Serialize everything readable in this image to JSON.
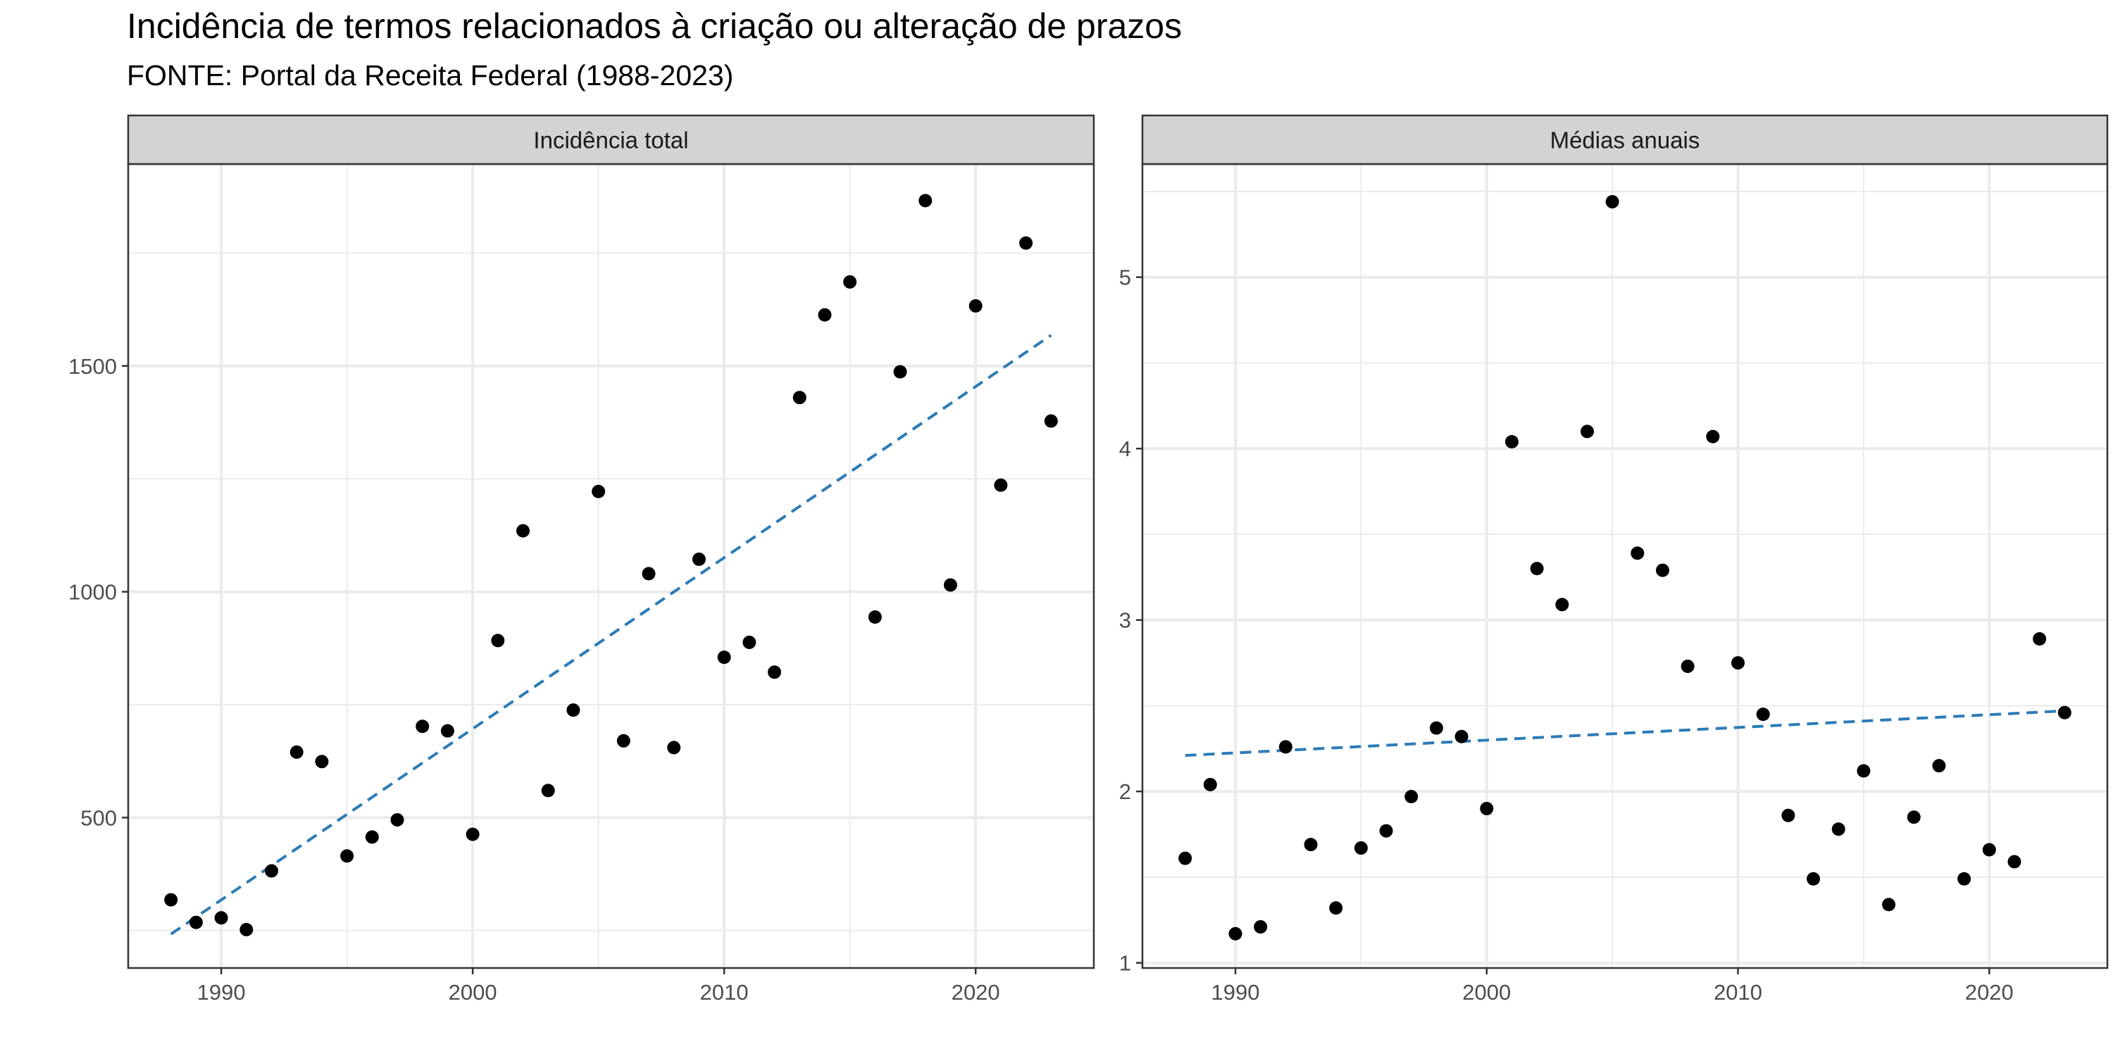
{
  "title": "Incidência de termos relacionados à criação ou alteração de prazos",
  "subtitle": "FONTE: Portal da Receita Federal (1988-2023)",
  "colors": {
    "trend": "#2c7bb6",
    "point": "#000000",
    "strip": "#d3d3d3",
    "grid": "#ebebeb"
  },
  "chart_data": [
    {
      "type": "scatter",
      "facet": "Incidência total",
      "x": [
        1988,
        1989,
        1990,
        1991,
        1992,
        1993,
        1994,
        1995,
        1996,
        1997,
        1998,
        1999,
        2000,
        2001,
        2002,
        2003,
        2004,
        2005,
        2006,
        2007,
        2008,
        2009,
        2010,
        2011,
        2012,
        2013,
        2014,
        2015,
        2016,
        2017,
        2018,
        2019,
        2020,
        2021,
        2022,
        2023
      ],
      "y": [
        318,
        268,
        278,
        252,
        382,
        645,
        624,
        415,
        457,
        495,
        702,
        692,
        463,
        892,
        1135,
        560,
        738,
        1222,
        670,
        1040,
        655,
        1072,
        855,
        888,
        822,
        1430,
        1613,
        1686,
        944,
        1487,
        1866,
        1015,
        1633,
        1236,
        1772,
        1378
      ],
      "trend": {
        "style": "dashed",
        "x": [
          1988,
          2023
        ],
        "y": [
          242,
          1568
        ]
      },
      "xticks": [
        "1990",
        "2000",
        "2010",
        "2020"
      ],
      "yticks": [
        "500",
        "1000",
        "1500"
      ],
      "xlim": [
        1986.3,
        2024.7
      ],
      "ylim": [
        167,
        1947
      ]
    },
    {
      "type": "scatter",
      "facet": "Médias anuais",
      "x": [
        1988,
        1989,
        1990,
        1991,
        1992,
        1993,
        1994,
        1995,
        1996,
        1997,
        1998,
        1999,
        2000,
        2001,
        2002,
        2003,
        2004,
        2005,
        2006,
        2007,
        2008,
        2009,
        2010,
        2011,
        2012,
        2013,
        2014,
        2015,
        2016,
        2017,
        2018,
        2019,
        2020,
        2021,
        2022,
        2023
      ],
      "y": [
        1.61,
        2.04,
        1.17,
        1.21,
        2.26,
        1.69,
        1.32,
        1.67,
        1.77,
        1.97,
        2.37,
        2.32,
        1.9,
        4.04,
        3.3,
        3.09,
        4.1,
        5.44,
        3.39,
        3.29,
        2.73,
        4.07,
        2.75,
        2.45,
        1.86,
        1.49,
        1.78,
        2.12,
        1.34,
        1.85,
        2.15,
        1.49,
        1.66,
        1.59,
        2.89,
        2.46
      ],
      "trend": {
        "style": "dashed",
        "x": [
          1988,
          2023
        ],
        "y": [
          2.21,
          2.47
        ]
      },
      "xticks": [
        "1990",
        "2000",
        "2010",
        "2020"
      ],
      "yticks": [
        "1",
        "2",
        "3",
        "4",
        "5"
      ],
      "xlim": [
        1986.3,
        2024.7
      ],
      "ylim": [
        0.97,
        5.66
      ]
    }
  ]
}
